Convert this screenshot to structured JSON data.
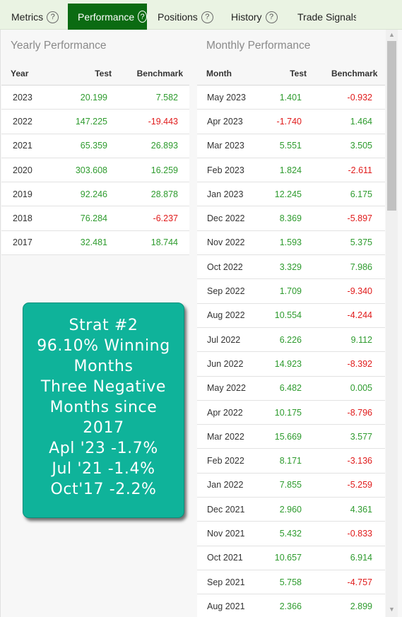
{
  "tabs": [
    {
      "label": "Metrics",
      "has_help": true,
      "active": false
    },
    {
      "label": "Performance",
      "has_help": true,
      "active": true
    },
    {
      "label": "Positions",
      "has_help": true,
      "active": false
    },
    {
      "label": "History",
      "has_help": true,
      "active": false
    },
    {
      "label": "Trade Signals",
      "has_help": true,
      "active": false
    }
  ],
  "yearly": {
    "title": "Yearly Performance",
    "headers": {
      "period": "Year",
      "test": "Test",
      "benchmark": "Benchmark"
    },
    "rows": [
      {
        "period": "2023",
        "test": "20.199",
        "benchmark": "7.582"
      },
      {
        "period": "2022",
        "test": "147.225",
        "benchmark": "-19.443"
      },
      {
        "period": "2021",
        "test": "65.359",
        "benchmark": "26.893"
      },
      {
        "period": "2020",
        "test": "303.608",
        "benchmark": "16.259"
      },
      {
        "period": "2019",
        "test": "92.246",
        "benchmark": "28.878"
      },
      {
        "period": "2018",
        "test": "76.284",
        "benchmark": "-6.237"
      },
      {
        "period": "2017",
        "test": "32.481",
        "benchmark": "18.744"
      }
    ]
  },
  "monthly": {
    "title": "Monthly Performance",
    "headers": {
      "period": "Month",
      "test": "Test",
      "benchmark": "Benchmark"
    },
    "rows": [
      {
        "period": "May 2023",
        "test": "1.401",
        "benchmark": "-0.932"
      },
      {
        "period": "Apr 2023",
        "test": "-1.740",
        "benchmark": "1.464"
      },
      {
        "period": "Mar 2023",
        "test": "5.551",
        "benchmark": "3.505"
      },
      {
        "period": "Feb 2023",
        "test": "1.824",
        "benchmark": "-2.611"
      },
      {
        "period": "Jan 2023",
        "test": "12.245",
        "benchmark": "6.175"
      },
      {
        "period": "Dec 2022",
        "test": "8.369",
        "benchmark": "-5.897"
      },
      {
        "period": "Nov 2022",
        "test": "1.593",
        "benchmark": "5.375"
      },
      {
        "period": "Oct 2022",
        "test": "3.329",
        "benchmark": "7.986"
      },
      {
        "period": "Sep 2022",
        "test": "1.709",
        "benchmark": "-9.340"
      },
      {
        "period": "Aug 2022",
        "test": "10.554",
        "benchmark": "-4.244"
      },
      {
        "period": "Jul 2022",
        "test": "6.226",
        "benchmark": "9.112"
      },
      {
        "period": "Jun 2022",
        "test": "14.923",
        "benchmark": "-8.392"
      },
      {
        "period": "May 2022",
        "test": "6.482",
        "benchmark": "0.005"
      },
      {
        "period": "Apr 2022",
        "test": "10.175",
        "benchmark": "-8.796"
      },
      {
        "period": "Mar 2022",
        "test": "15.669",
        "benchmark": "3.577"
      },
      {
        "period": "Feb 2022",
        "test": "8.171",
        "benchmark": "-3.136"
      },
      {
        "period": "Jan 2022",
        "test": "7.855",
        "benchmark": "-5.259"
      },
      {
        "period": "Dec 2021",
        "test": "2.960",
        "benchmark": "4.361"
      },
      {
        "period": "Nov 2021",
        "test": "5.432",
        "benchmark": "-0.833"
      },
      {
        "period": "Oct 2021",
        "test": "10.657",
        "benchmark": "6.914"
      },
      {
        "period": "Sep 2021",
        "test": "5.758",
        "benchmark": "-4.757"
      },
      {
        "period": "Aug 2021",
        "test": "2.366",
        "benchmark": "2.899"
      }
    ]
  },
  "overlay": {
    "lines": [
      "Strat #2",
      "96.10% Winning",
      "Months",
      "Three Negative",
      "Months since",
      "2017",
      "Apl '23 -1.7%",
      "Jul '21 -1.4%",
      "Oct'17 -2.2%"
    ]
  },
  "colors": {
    "positive": "#2e9b2e",
    "negative": "#e01b1b",
    "active_tab": "#0b6b12",
    "overlay": "#0fb39a"
  }
}
